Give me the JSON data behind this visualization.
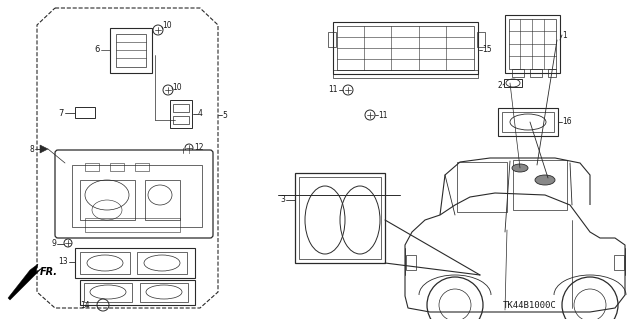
{
  "background_color": "#ffffff",
  "fig_width": 6.4,
  "fig_height": 3.19,
  "dpi": 100,
  "diagram_code": "TK44B1000C",
  "line_color": "#2a2a2a",
  "text_color": "#1a1a1a",
  "label_fontsize": 6.0,
  "code_fontsize": 6.5,
  "xlim": [
    0,
    640
  ],
  "ylim": [
    0,
    319
  ]
}
